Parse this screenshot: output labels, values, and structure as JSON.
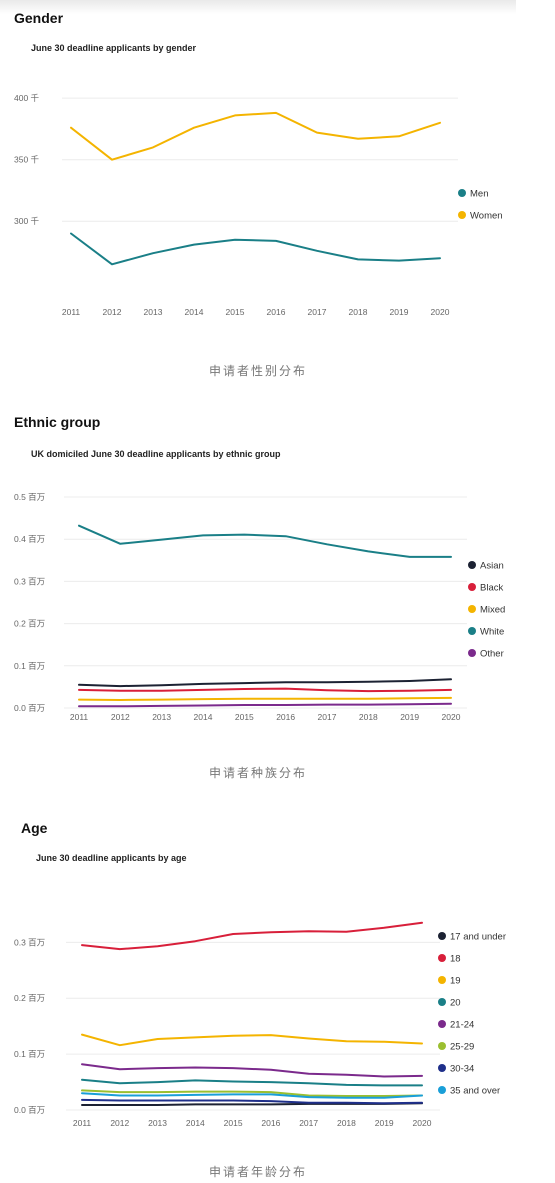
{
  "sections": [
    {
      "heading": "Gender",
      "caption": "申请者性别分布",
      "chart": {
        "title": "June 30 deadline applicants by gender",
        "x": [
          "2011",
          "2012",
          "2013",
          "2014",
          "2015",
          "2016",
          "2017",
          "2018",
          "2019",
          "2020"
        ],
        "yticks": [
          {
            "v": 300,
            "label": "300 千"
          },
          {
            "v": 350,
            "label": "350 千"
          },
          {
            "v": 400,
            "label": "400 千"
          }
        ],
        "ylim": [
          262,
          405
        ],
        "grid": true,
        "legend_position": "right",
        "series": [
          {
            "name": "Men",
            "color": "#1a7f87",
            "values": [
              290,
              265,
              274,
              281,
              285,
              284,
              276,
              269,
              268,
              270
            ]
          },
          {
            "name": "Women",
            "color": "#f4b400",
            "values": [
              376,
              350,
              360,
              376,
              386,
              388,
              372,
              367,
              369,
              380
            ]
          }
        ]
      }
    },
    {
      "heading": "Ethnic group",
      "caption": "申请者种族分布",
      "chart": {
        "title": "UK domiciled June 30 deadline applicants by ethnic group",
        "x": [
          "2011",
          "2012",
          "2013",
          "2014",
          "2015",
          "2016",
          "2017",
          "2018",
          "2019",
          "2020"
        ],
        "yticks": [
          {
            "v": 0.0,
            "label": "0.0 百万"
          },
          {
            "v": 0.1,
            "label": "0.1 百万"
          },
          {
            "v": 0.2,
            "label": "0.2 百万"
          },
          {
            "v": 0.3,
            "label": "0.3 百万"
          },
          {
            "v": 0.4,
            "label": "0.4 百万"
          },
          {
            "v": 0.5,
            "label": "0.5 百万"
          }
        ],
        "ylim": [
          0.0,
          0.5
        ],
        "grid": true,
        "legend_position": "right",
        "series": [
          {
            "name": "Asian",
            "color": "#1c2233",
            "values": [
              0.055,
              0.052,
              0.054,
              0.057,
              0.059,
              0.061,
              0.061,
              0.062,
              0.064,
              0.068
            ]
          },
          {
            "name": "Black",
            "color": "#d81f3a",
            "values": [
              0.043,
              0.041,
              0.041,
              0.043,
              0.045,
              0.046,
              0.042,
              0.04,
              0.041,
              0.043
            ]
          },
          {
            "name": "Mixed",
            "color": "#f4b400",
            "values": [
              0.02,
              0.019,
              0.02,
              0.021,
              0.022,
              0.022,
              0.022,
              0.022,
              0.023,
              0.024
            ]
          },
          {
            "name": "White",
            "color": "#1a7f87",
            "values": [
              0.432,
              0.389,
              0.399,
              0.409,
              0.411,
              0.407,
              0.388,
              0.371,
              0.358,
              0.358
            ]
          },
          {
            "name": "Other",
            "color": "#7b2a8c",
            "values": [
              0.004,
              0.004,
              0.005,
              0.006,
              0.007,
              0.007,
              0.008,
              0.008,
              0.009,
              0.01
            ]
          }
        ]
      }
    },
    {
      "heading": "Age",
      "caption": "申请者年龄分布",
      "chart": {
        "title": "June 30 deadline applicants by age",
        "x": [
          "2011",
          "2012",
          "2013",
          "2014",
          "2015",
          "2016",
          "2017",
          "2018",
          "2019",
          "2020"
        ],
        "yticks": [
          {
            "v": 0.0,
            "label": "0.0 百万"
          },
          {
            "v": 0.1,
            "label": "0.1 百万"
          },
          {
            "v": 0.2,
            "label": "0.2 百万"
          },
          {
            "v": 0.3,
            "label": "0.3 百万"
          }
        ],
        "ylim": [
          0.0,
          0.34
        ],
        "grid": true,
        "legend_position": "right",
        "series": [
          {
            "name": "17 and under",
            "color": "#1c2233",
            "values": [
              0.009,
              0.009,
              0.009,
              0.01,
              0.01,
              0.01,
              0.011,
              0.011,
              0.011,
              0.012
            ]
          },
          {
            "name": "18",
            "color": "#d81f3a",
            "values": [
              0.295,
              0.288,
              0.293,
              0.302,
              0.315,
              0.318,
              0.32,
              0.319,
              0.326,
              0.335
            ]
          },
          {
            "name": "19",
            "color": "#f4b400",
            "values": [
              0.135,
              0.116,
              0.127,
              0.13,
              0.133,
              0.134,
              0.128,
              0.123,
              0.122,
              0.119
            ]
          },
          {
            "name": "20",
            "color": "#1a7f87",
            "values": [
              0.054,
              0.048,
              0.05,
              0.053,
              0.051,
              0.05,
              0.048,
              0.045,
              0.044,
              0.044
            ]
          },
          {
            "name": "21-24",
            "color": "#7b2a8c",
            "values": [
              0.082,
              0.073,
              0.075,
              0.076,
              0.075,
              0.072,
              0.065,
              0.063,
              0.06,
              0.061
            ]
          },
          {
            "name": "25-29",
            "color": "#9bbf30",
            "values": [
              0.035,
              0.032,
              0.032,
              0.033,
              0.033,
              0.032,
              0.026,
              0.025,
              0.025,
              0.026
            ]
          },
          {
            "name": "30-34",
            "color": "#1f2f8a",
            "values": [
              0.018,
              0.017,
              0.017,
              0.017,
              0.017,
              0.016,
              0.013,
              0.013,
              0.012,
              0.013
            ]
          },
          {
            "name": "35 and over",
            "color": "#1a9fd8",
            "values": [
              0.03,
              0.026,
              0.026,
              0.027,
              0.028,
              0.028,
              0.023,
              0.022,
              0.022,
              0.026
            ]
          }
        ]
      }
    }
  ]
}
